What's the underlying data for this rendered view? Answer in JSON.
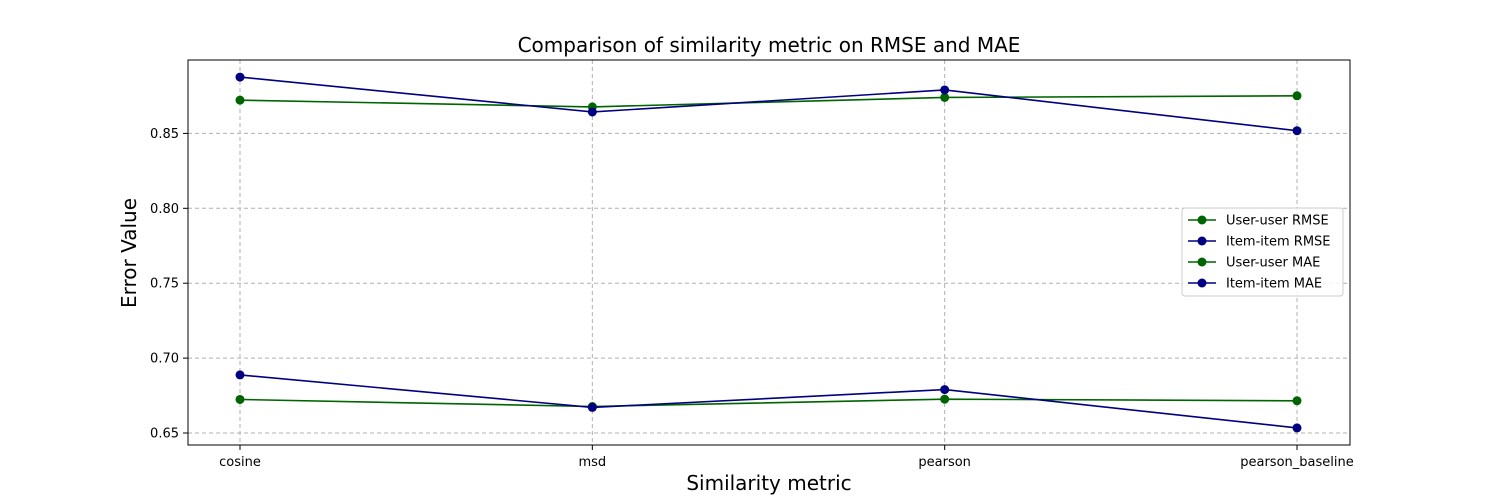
{
  "chart_data": {
    "type": "line",
    "title": "Comparison of similarity metric on RMSE and MAE",
    "xlabel": "Similarity metric",
    "ylabel": "Error Value",
    "categories": [
      "cosine",
      "msd",
      "pearson",
      "pearson_baseline"
    ],
    "ylim": [
      0.642,
      0.899
    ],
    "yticks": [
      "0.65",
      "0.70",
      "0.75",
      "0.80",
      "0.85"
    ],
    "grid": true,
    "legend_position": "center-right",
    "series": [
      {
        "name": "User-user RMSE",
        "color": "#006400",
        "values": [
          0.8722,
          0.8677,
          0.874,
          0.8751
        ]
      },
      {
        "name": "Item-item RMSE",
        "color": "#000080",
        "values": [
          0.8876,
          0.8643,
          0.879,
          0.8518
        ]
      },
      {
        "name": "User-user MAE",
        "color": "#006400",
        "values": [
          0.6724,
          0.6677,
          0.6726,
          0.6715
        ]
      },
      {
        "name": "Item-item MAE",
        "color": "#000080",
        "values": [
          0.6888,
          0.6671,
          0.679,
          0.6534
        ]
      }
    ]
  }
}
